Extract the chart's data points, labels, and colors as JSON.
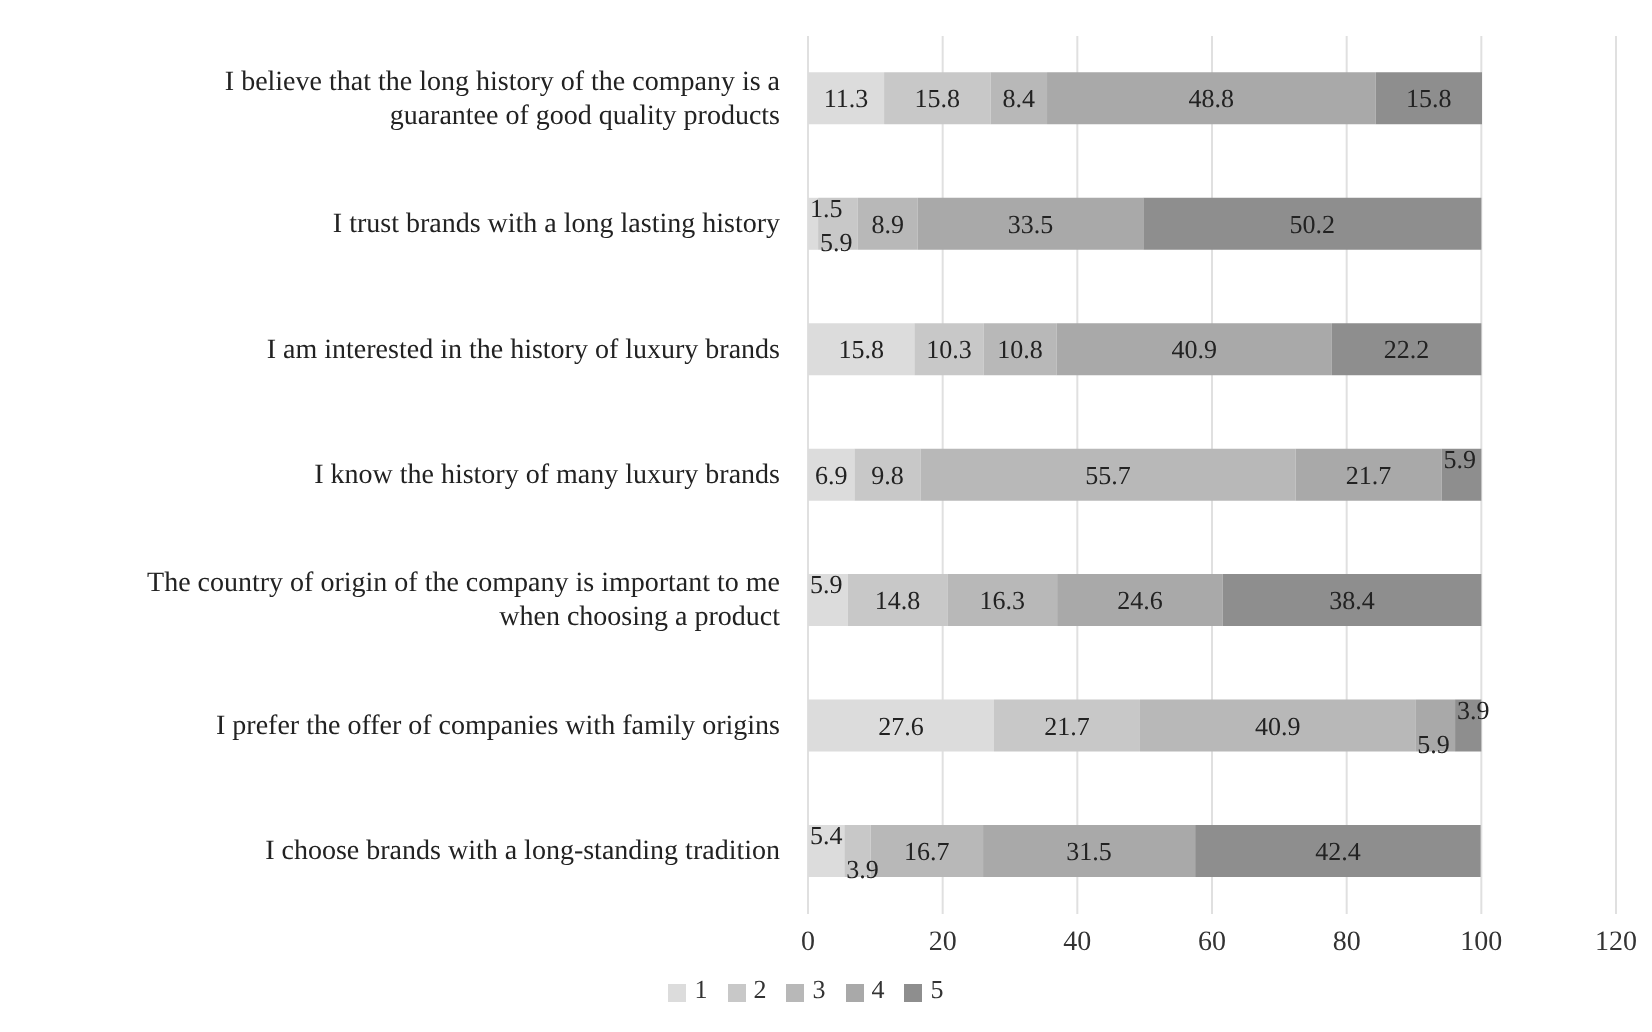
{
  "chart_data": {
    "type": "bar",
    "orientation": "horizontal",
    "stacked": true,
    "categories": [
      "I believe that the long history of the company is a guarantee of good quality products",
      "I trust brands with a long lasting history",
      "I am interested in the history of luxury brands",
      "I know the history of many luxury brands",
      "The country of origin of the company is important to me when choosing a product",
      "I prefer the offer of companies with family origins",
      "I choose brands with a long-standing tradition"
    ],
    "series": [
      {
        "name": "1",
        "color": "#dcdcdc",
        "values": [
          11.3,
          1.5,
          15.8,
          6.9,
          5.9,
          27.6,
          5.4
        ]
      },
      {
        "name": "2",
        "color": "#c8c8c8",
        "values": [
          15.8,
          5.9,
          10.3,
          9.8,
          14.8,
          21.7,
          3.9
        ]
      },
      {
        "name": "3",
        "color": "#b8b8b8",
        "values": [
          8.4,
          8.9,
          10.8,
          55.7,
          16.3,
          40.9,
          16.7
        ]
      },
      {
        "name": "4",
        "color": "#a9a9a9",
        "values": [
          48.8,
          33.5,
          40.9,
          21.7,
          24.6,
          5.9,
          31.5
        ]
      },
      {
        "name": "5",
        "color": "#8e8e8e",
        "values": [
          15.8,
          50.2,
          22.2,
          5.9,
          38.4,
          3.9,
          42.4
        ]
      }
    ],
    "xlim": [
      0,
      120
    ],
    "xticks": [
      0,
      20,
      40,
      60,
      80,
      100,
      120
    ],
    "grid": "x",
    "legend": "bottom",
    "data_labels": true
  }
}
